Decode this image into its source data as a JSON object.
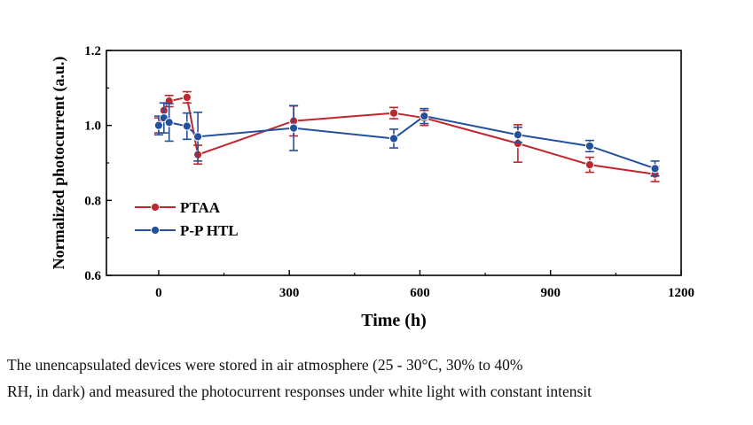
{
  "chart_data": {
    "type": "line",
    "title": "",
    "xlabel": "Time (h)",
    "ylabel": "Normalized photocurrent  (a.u.)",
    "xlim": [
      -120,
      1200
    ],
    "ylim": [
      0.6,
      1.2
    ],
    "xticks": [
      0,
      300,
      600,
      900,
      1200
    ],
    "xtick_labels": [
      "0",
      "300",
      "600",
      "900",
      "1200"
    ],
    "yticks": [
      0.6,
      0.8,
      1.0,
      1.2
    ],
    "ytick_labels": [
      "0.6",
      "0.8",
      "1.0",
      "1.2"
    ],
    "legend_position": "bottom-left",
    "series": [
      {
        "name": "PTAA",
        "color": "#c0262d",
        "x": [
          0,
          12,
          24,
          65,
          90,
          310,
          540,
          610,
          825,
          990,
          1140
        ],
        "y": [
          1.0,
          1.04,
          1.065,
          1.075,
          0.922,
          1.012,
          1.033,
          1.02,
          0.952,
          0.895,
          0.87
        ],
        "err": [
          0.02,
          0.02,
          0.015,
          0.015,
          0.025,
          0.04,
          0.015,
          0.02,
          0.05,
          0.02,
          0.02
        ]
      },
      {
        "name": "P-P HTL",
        "color": "#23509c",
        "x": [
          0,
          12,
          24,
          65,
          90,
          310,
          540,
          610,
          825,
          990,
          1140
        ],
        "y": [
          1.0,
          1.02,
          1.008,
          0.998,
          0.97,
          0.993,
          0.965,
          1.025,
          0.975,
          0.945,
          0.885
        ],
        "err": [
          0.025,
          0.04,
          0.05,
          0.035,
          0.065,
          0.06,
          0.025,
          0.02,
          0.02,
          0.015,
          0.02
        ]
      }
    ]
  },
  "caption": {
    "line1": "The unencapsulated devices were stored in air atmosphere (25 - 30°C, 30% to 40%",
    "line2": "RH, in dark) and measured the photocurrent responses under white light with constant intensit"
  }
}
